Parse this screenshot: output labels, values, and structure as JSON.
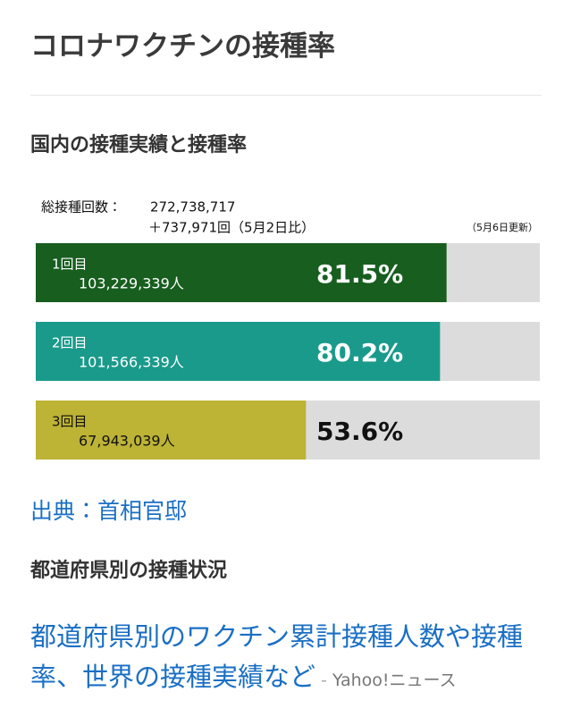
{
  "header": {
    "title": "コロナワクチンの接種率"
  },
  "section_title": "国内の接種実績と接種率",
  "chart_data": {
    "type": "bar",
    "total_label": "総接種回数：",
    "total": "272,738,717",
    "change": "＋737,971回（5月2日比）",
    "updated": "（5月6日更新）",
    "categories": [
      "1回目",
      "2回目",
      "3回目"
    ],
    "counts": [
      "103,229,339人",
      "101,566,339人",
      "67,943,039人"
    ],
    "values": [
      81.5,
      80.2,
      53.6
    ],
    "value_labels": [
      "81.5%",
      "80.2%",
      "53.6%"
    ],
    "colors": [
      "#175e1f",
      "#1a9a8b",
      "#bdb335"
    ],
    "label_colors": [
      "#ffffff",
      "#ffffff",
      "#111111"
    ],
    "track_color": "#dcdcdc",
    "xlim": [
      0,
      100
    ]
  },
  "source": "出典：首相官邸",
  "section2_title": "都道府県別の接種状況",
  "link": {
    "text": "都道府県別のワクチン累計接種人数や接種率、世界の接種実績など",
    "site": "Yahoo!ニュース"
  }
}
